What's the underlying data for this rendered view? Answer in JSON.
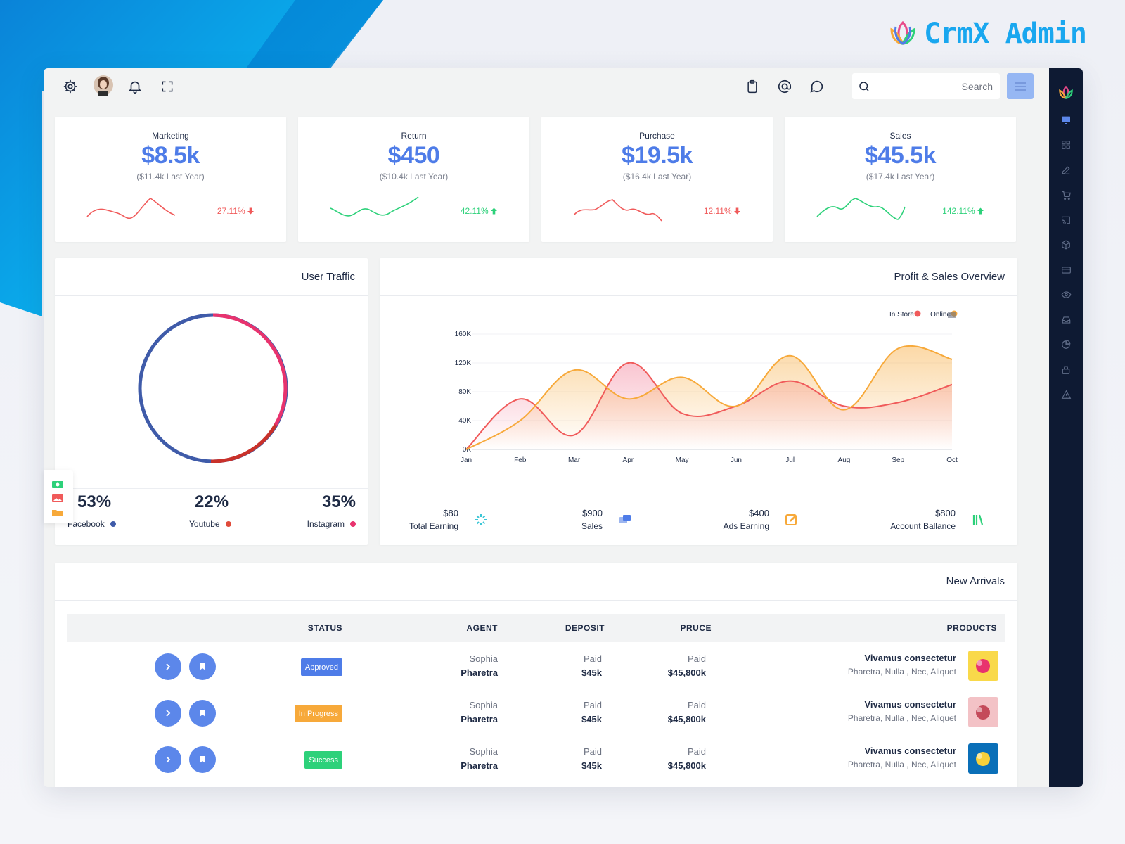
{
  "brand": {
    "name": "CrmX Admin"
  },
  "topbar": {
    "search_placeholder": "Search"
  },
  "stats": [
    {
      "label": "Marketing",
      "value": "$8.5k",
      "sub": "($11.4k Last Year)",
      "pct": "27.11%",
      "trend": "down",
      "color": "#f05a5a"
    },
    {
      "label": "Return",
      "value": "$450",
      "sub": "($10.4k Last Year)",
      "pct": "42.11%",
      "trend": "up",
      "color": "#2dd17a"
    },
    {
      "label": "Purchase",
      "value": "$19.5k",
      "sub": "($16.4k Last Year)",
      "pct": "12.11%",
      "trend": "down",
      "color": "#f05a5a"
    },
    {
      "label": "Sales",
      "value": "$45.5k",
      "sub": "($17.4k Last Year)",
      "pct": "142.11%",
      "trend": "up",
      "color": "#2dd17a"
    }
  ],
  "traffic": {
    "title": "User Traffic",
    "items": [
      {
        "value": "53%",
        "label": "Facebook",
        "color": "#3f5ba9"
      },
      {
        "value": "22%",
        "label": "Youtube",
        "color": "#e04a3a"
      },
      {
        "value": "35%",
        "label": "Instagram",
        "color": "#e8336e"
      }
    ]
  },
  "overview": {
    "title": "Profit & Sales Overview",
    "summary": [
      {
        "value": "$80",
        "label": "Total Earning",
        "icon": "sparkle-icon"
      },
      {
        "value": "$900",
        "label": "Sales",
        "icon": "chat-icon"
      },
      {
        "value": "$400",
        "label": "Ads Earning",
        "icon": "edit-icon"
      },
      {
        "value": "$800",
        "label": "Account Ballance",
        "icon": "library-icon"
      }
    ]
  },
  "chart_data": {
    "type": "area",
    "categories": [
      "Jan",
      "Feb",
      "Mar",
      "Apr",
      "May",
      "Jun",
      "Jul",
      "Aug",
      "Sep",
      "Oct"
    ],
    "series": [
      {
        "name": "In Store",
        "color": "#f05a5a",
        "values": [
          0,
          70000,
          20000,
          120000,
          50000,
          60000,
          95000,
          60000,
          65000,
          90000
        ]
      },
      {
        "name": "Online",
        "color": "#f7a93a",
        "values": [
          0,
          40000,
          110000,
          70000,
          100000,
          60000,
          130000,
          55000,
          140000,
          125000
        ]
      }
    ],
    "yticks": [
      "0K",
      "40K",
      "80K",
      "120K",
      "160K"
    ],
    "ylim": [
      0,
      160000
    ],
    "legend": "top-right"
  },
  "arrivals": {
    "title": "New Arrivals",
    "columns": {
      "status": "STATUS",
      "agent": "AGENT",
      "deposit": "DEPOSIT",
      "price": "PRUCE",
      "products": "PRODUCTS"
    },
    "rows": [
      {
        "status": "Approved",
        "status_color": "#4e7ce8",
        "agent_first": "Sophia",
        "agent_last": "Pharetra",
        "dep_l1": "Paid",
        "dep_l2": "$45k",
        "price_l1": "Paid",
        "price_l2": "$45,800k",
        "product": "Vivamus consectetur",
        "product_sub": "Pharetra, Nulla , Nec, Aliquet"
      },
      {
        "status": "In Progress",
        "status_color": "#f7a93a",
        "agent_first": "Sophia",
        "agent_last": "Pharetra",
        "dep_l1": "Paid",
        "dep_l2": "$45k",
        "price_l1": "Paid",
        "price_l2": "$45,800k",
        "product": "Vivamus consectetur",
        "product_sub": "Pharetra, Nulla , Nec, Aliquet"
      },
      {
        "status": "Success",
        "status_color": "#2dd17a",
        "agent_first": "Sophia",
        "agent_last": "Pharetra",
        "dep_l1": "Paid",
        "dep_l2": "$45k",
        "price_l1": "Paid",
        "price_l2": "$45,800k",
        "product": "Vivamus consectetur",
        "product_sub": "Pharetra, Nulla , Nec, Aliquet"
      }
    ]
  }
}
